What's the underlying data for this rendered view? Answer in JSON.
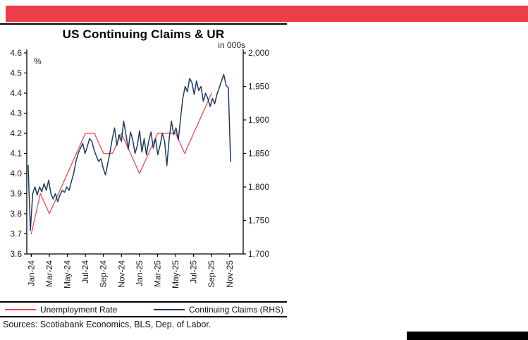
{
  "branding": {
    "top_bar_color": "#ec3e47",
    "bottom_bar_color": "#000000"
  },
  "source_note": "Sources: Scotiabank Economics, BLS, Dep. of Labor.",
  "chart_data": {
    "type": "line",
    "title": "US Continuing Claims & UR",
    "grid": false,
    "legend_position": "bottom",
    "left_axis": {
      "caption": "%",
      "min": 3.6,
      "max": 4.6,
      "step": 0.1,
      "tick_labels": [
        "4.6",
        "4.5",
        "4.4",
        "4.3",
        "4.2",
        "4.1",
        "4.0",
        "3.9",
        "3.8",
        "3.7",
        "3.6"
      ]
    },
    "right_axis": {
      "caption": "in 000s",
      "min": 1700,
      "max": 2000,
      "step": 50,
      "tick_labels": [
        "2,000",
        "1,950",
        "1,900",
        "1,850",
        "1,800",
        "1,750",
        "1,700"
      ]
    },
    "x_axis": {
      "months_span": 24,
      "tick_labels": [
        "Jan-24",
        "Mar-24",
        "May-24",
        "Jul-24",
        "Sep-24",
        "Nov-24",
        "Jan-25",
        "Mar-25",
        "May-25",
        "Jul-25",
        "Sep-25",
        "Nov-25"
      ]
    },
    "series": [
      {
        "name": "Unemployment Rate",
        "axis": "left",
        "color": "#ef4956",
        "frequency": "monthly",
        "months": [
          "Jan-24",
          "Feb-24",
          "Mar-24",
          "Apr-24",
          "May-24",
          "Jun-24",
          "Jul-24",
          "Aug-24",
          "Sep-24",
          "Oct-24",
          "Nov-24",
          "Dec-24",
          "Jan-25",
          "Feb-25",
          "Mar-25",
          "Apr-25",
          "May-25",
          "Jun-25",
          "Jul-25",
          "Aug-25",
          "Sep-25"
        ],
        "values": [
          3.7,
          3.9,
          3.8,
          3.9,
          4.0,
          4.1,
          4.2,
          4.2,
          4.1,
          4.1,
          4.2,
          4.1,
          4.0,
          4.1,
          4.2,
          4.2,
          4.2,
          4.1,
          4.2,
          4.3,
          4.4
        ]
      },
      {
        "name": "Continuing Claims (RHS)",
        "axis": "right",
        "color": "#1f3a63",
        "frequency": "weekly",
        "start_month": "Jan-24",
        "end_month": "Nov-25",
        "x_month_start": 0.15,
        "x_month_end": 22.6,
        "values": [
          1832,
          1735,
          1790,
          1800,
          1788,
          1800,
          1793,
          1805,
          1795,
          1810,
          1790,
          1782,
          1790,
          1778,
          1788,
          1795,
          1792,
          1800,
          1795,
          1808,
          1820,
          1838,
          1850,
          1858,
          1865,
          1850,
          1860,
          1872,
          1868,
          1855,
          1846,
          1838,
          1842,
          1828,
          1818,
          1835,
          1852,
          1872,
          1888,
          1862,
          1878,
          1868,
          1898,
          1878,
          1856,
          1882,
          1870,
          1850,
          1862,
          1884,
          1852,
          1872,
          1848,
          1868,
          1882,
          1858,
          1872,
          1848,
          1862,
          1880,
          1868,
          1832,
          1872,
          1898,
          1878,
          1888,
          1870,
          1902,
          1932,
          1950,
          1942,
          1962,
          1956,
          1938,
          1958,
          1944,
          1950,
          1928,
          1940,
          1932,
          1920,
          1932,
          1924,
          1938,
          1948,
          1958,
          1968,
          1952,
          1948,
          1838
        ]
      }
    ]
  }
}
